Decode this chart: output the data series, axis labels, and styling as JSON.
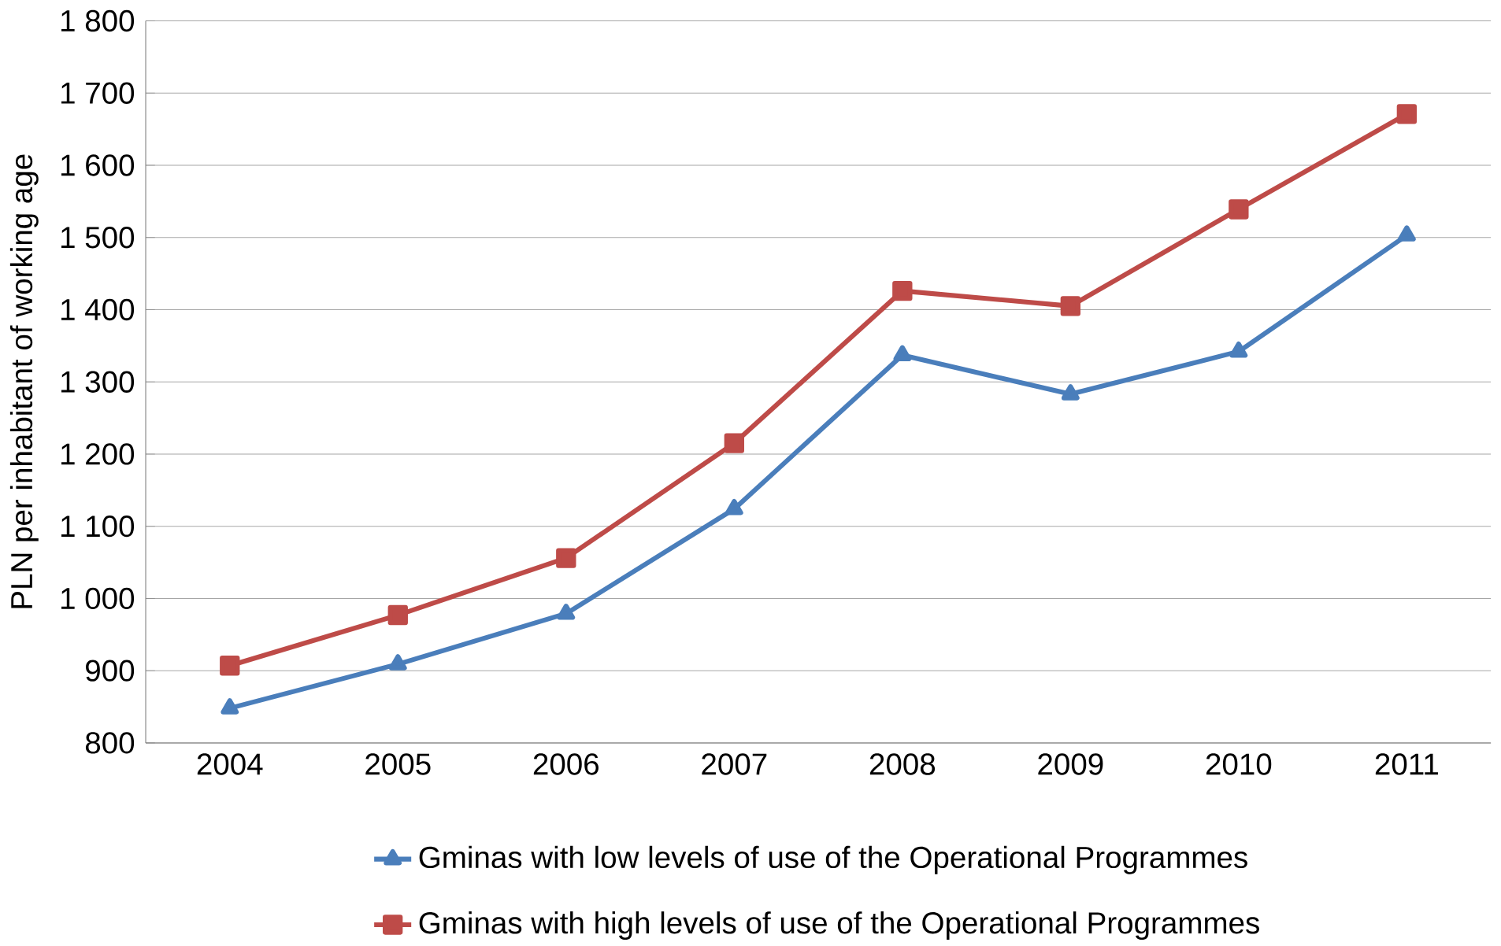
{
  "chart_data": {
    "type": "line",
    "ylabel": "PLN per inhabitant of working age",
    "categories": [
      "2004",
      "2005",
      "2006",
      "2007",
      "2008",
      "2009",
      "2010",
      "2011"
    ],
    "series": [
      {
        "name": "Gminas with low levels of use of the Operational Programmes",
        "color": "#4a7ebb",
        "marker": "triangle",
        "values": [
          848,
          909,
          979,
          1124,
          1337,
          1283,
          1342,
          1503
        ]
      },
      {
        "name": "Gminas with high levels of use of the Operational Programmes",
        "color": "#be4b48",
        "marker": "square",
        "values": [
          907,
          977,
          1056,
          1215,
          1426,
          1405,
          1539,
          1671
        ]
      }
    ],
    "ylim": [
      800,
      1800
    ],
    "yticks": [
      {
        "value": 800,
        "label": "800"
      },
      {
        "value": 900,
        "label": "900"
      },
      {
        "value": 1000,
        "label": "1 000"
      },
      {
        "value": 1100,
        "label": "1 100"
      },
      {
        "value": 1200,
        "label": "1 200"
      },
      {
        "value": 1300,
        "label": "1 300"
      },
      {
        "value": 1400,
        "label": "1 400"
      },
      {
        "value": 1500,
        "label": "1 500"
      },
      {
        "value": 1600,
        "label": "1 600"
      },
      {
        "value": 1700,
        "label": "1 700"
      },
      {
        "value": 1800,
        "label": "1 800"
      }
    ],
    "grid": "y",
    "legend": "bottom",
    "line_style": "solid"
  }
}
